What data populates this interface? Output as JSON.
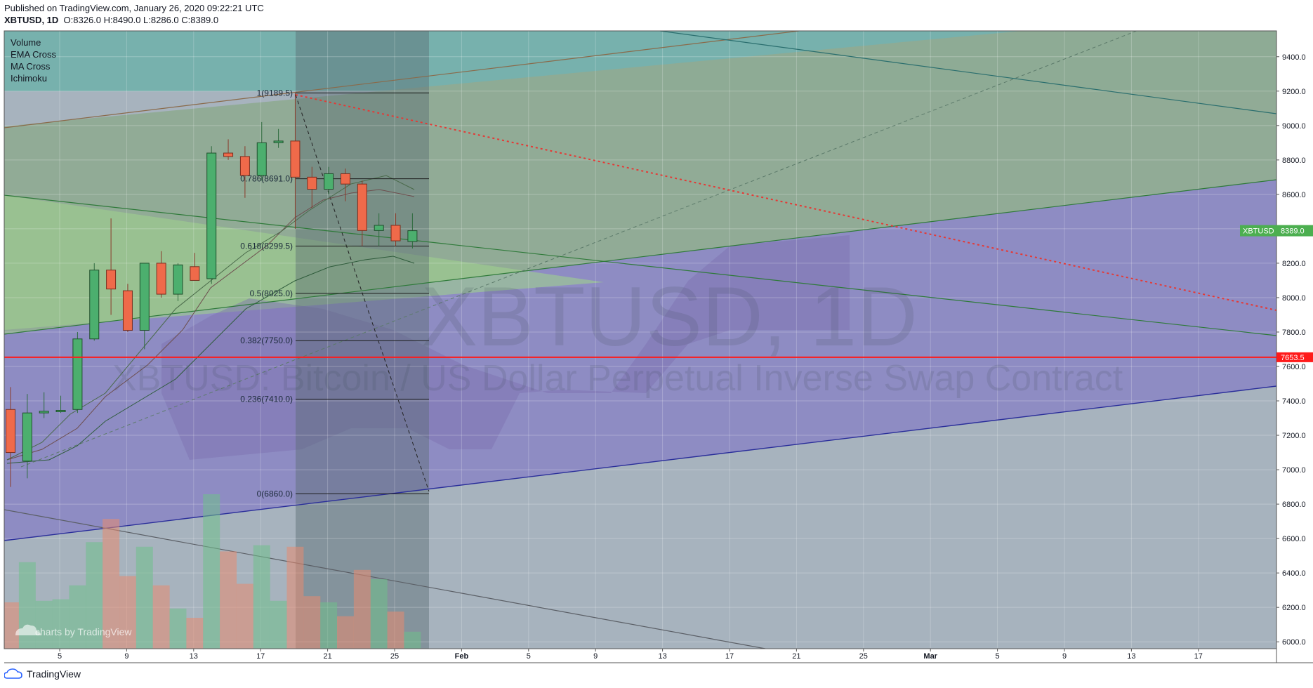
{
  "header": {
    "published": "Published on TradingView.com, January 26, 2020 09:22:21 UTC",
    "symbol": "XBTUSD, 1D",
    "o_label": "O:",
    "o": "8326.0",
    "h_label": "H:",
    "h": "8490.0",
    "l_label": "L:",
    "l": "8286.0",
    "c_label": "C:",
    "c": "8389.0"
  },
  "indicators": [
    "Volume",
    "EMA Cross",
    "MA Cross",
    "Ichimoku"
  ],
  "watermark": {
    "title": "XBTUSD, 1D",
    "subtitle": "XBTUSD: Bitcoin / US Dollar Perpetual Inverse Swap Contract"
  },
  "branding": {
    "chart_credit": "charts by TradingView",
    "footer": "TradingView"
  },
  "price_tags": {
    "symbol_label": "XBTUSD",
    "last_price": "8389.0",
    "red_line": "7653.5"
  },
  "colors": {
    "up": "#4caf6e",
    "down": "#ef6a4a",
    "red_line": "#ff1a1a",
    "price_tag_green": "#4caf50"
  },
  "chart_data": {
    "type": "candlestick",
    "symbol": "XBTUSD",
    "interval": "1D",
    "x_ticks": [
      "5",
      "9",
      "13",
      "17",
      "21",
      "25",
      "Feb",
      "5",
      "9",
      "13",
      "17",
      "21",
      "25",
      "Mar",
      "5",
      "9",
      "13",
      "17"
    ],
    "y_ticks": [
      6000,
      6200,
      6400,
      6600,
      6800,
      7000,
      7200,
      7400,
      7600,
      7800,
      8000,
      8200,
      8400,
      8600,
      8800,
      9000,
      9200,
      9400
    ],
    "ylim": [
      5960,
      9550
    ],
    "candles": [
      {
        "o": 7350,
        "h": 7480,
        "l": 6900,
        "c": 7100
      },
      {
        "o": 7050,
        "h": 7440,
        "l": 6950,
        "c": 7330
      },
      {
        "o": 7330,
        "h": 7450,
        "l": 7300,
        "c": 7340
      },
      {
        "o": 7340,
        "h": 7430,
        "l": 7330,
        "c": 7345
      },
      {
        "o": 7350,
        "h": 7800,
        "l": 7330,
        "c": 7760
      },
      {
        "o": 7760,
        "h": 8200,
        "l": 7750,
        "c": 8160
      },
      {
        "o": 8160,
        "h": 8460,
        "l": 7900,
        "c": 8050
      },
      {
        "o": 8040,
        "h": 8080,
        "l": 7800,
        "c": 7810
      },
      {
        "o": 7810,
        "h": 8200,
        "l": 7700,
        "c": 8200
      },
      {
        "o": 8200,
        "h": 8270,
        "l": 8000,
        "c": 8020
      },
      {
        "o": 8020,
        "h": 8200,
        "l": 7980,
        "c": 8190
      },
      {
        "o": 8180,
        "h": 8260,
        "l": 8100,
        "c": 8100
      },
      {
        "o": 8110,
        "h": 8880,
        "l": 8080,
        "c": 8840
      },
      {
        "o": 8840,
        "h": 8920,
        "l": 8800,
        "c": 8820
      },
      {
        "o": 8820,
        "h": 8880,
        "l": 8580,
        "c": 8710
      },
      {
        "o": 8710,
        "h": 9020,
        "l": 8680,
        "c": 8900
      },
      {
        "o": 8900,
        "h": 8980,
        "l": 8870,
        "c": 8910
      },
      {
        "o": 8910,
        "h": 9190,
        "l": 8400,
        "c": 8700
      },
      {
        "o": 8700,
        "h": 8760,
        "l": 8520,
        "c": 8630
      },
      {
        "o": 8630,
        "h": 8760,
        "l": 8600,
        "c": 8720
      },
      {
        "o": 8720,
        "h": 8750,
        "l": 8560,
        "c": 8660
      },
      {
        "o": 8660,
        "h": 8680,
        "l": 8300,
        "c": 8390
      },
      {
        "o": 8390,
        "h": 8490,
        "l": 8300,
        "c": 8420
      },
      {
        "o": 8420,
        "h": 8490,
        "l": 8300,
        "c": 8330
      },
      {
        "o": 8326,
        "h": 8490,
        "l": 8286,
        "c": 8389
      }
    ],
    "volume_relative": [
      0.3,
      0.56,
      0.31,
      0.32,
      0.41,
      0.69,
      0.84,
      0.47,
      0.66,
      0.41,
      0.26,
      0.2,
      1.0,
      0.63,
      0.42,
      0.67,
      0.31,
      0.66,
      0.34,
      0.3,
      0.21,
      0.51,
      0.45,
      0.24,
      0.11
    ],
    "fibonacci": [
      {
        "label": "1(9189.5)",
        "value": 9189.5
      },
      {
        "label": "0.786(8691.0)",
        "value": 8691.0
      },
      {
        "label": "0.618(8299.5)",
        "value": 8299.5
      },
      {
        "label": "0.5(8025.0)",
        "value": 8025.0
      },
      {
        "label": "0.382(7750.0)",
        "value": 7750.0
      },
      {
        "label": "0.236(7410.0)",
        "value": 7410.0
      },
      {
        "label": "0(6860.0)",
        "value": 6860.0
      }
    ],
    "horizontal_level": 7653.5,
    "last_price": 8389.0
  }
}
